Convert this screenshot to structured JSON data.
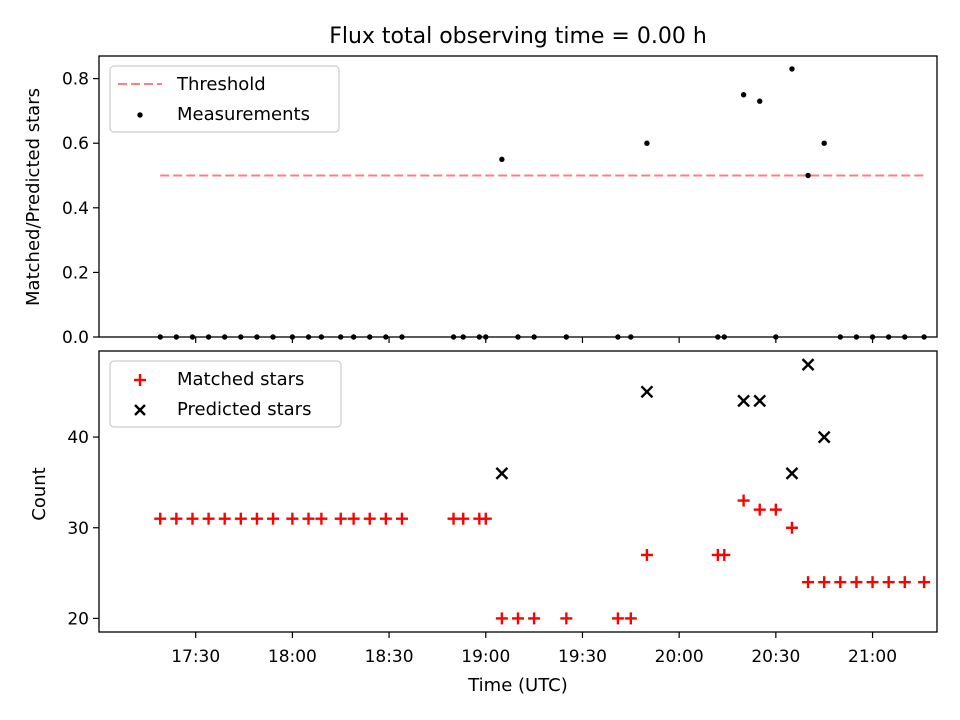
{
  "title": "Flux total observing time = 0.00 h",
  "chart_data": [
    {
      "type": "scatter",
      "ylabel": "Matched/Predicted stars",
      "ylim": [
        0,
        0.87
      ],
      "yticks": [
        0.0,
        0.2,
        0.4,
        0.6,
        0.8
      ],
      "ytick_labels": [
        "0.0",
        "0.2",
        "0.4",
        "0.6",
        "0.8"
      ],
      "legend_position": "top-left",
      "grid": false,
      "threshold": {
        "name": "Threshold",
        "y": 0.5,
        "x_start": "17:19",
        "x_end": "21:16",
        "color": "#ff7f7f",
        "style": "dashed"
      },
      "series": [
        {
          "name": "Measurements",
          "color": "#000000",
          "marker": "dot",
          "x": [
            "17:19",
            "17:24",
            "17:29",
            "17:34",
            "17:39",
            "17:44",
            "17:49",
            "17:54",
            "18:00",
            "18:05",
            "18:09",
            "18:15",
            "18:19",
            "18:24",
            "18:29",
            "18:34",
            "18:50",
            "18:53",
            "18:58",
            "19:00",
            "19:05",
            "19:10",
            "19:15",
            "19:25",
            "19:41",
            "19:45",
            "19:50",
            "20:12",
            "20:14",
            "20:20",
            "20:25",
            "20:30",
            "20:35",
            "20:40",
            "20:45",
            "20:50",
            "20:55",
            "21:00",
            "21:05",
            "21:10",
            "21:16"
          ],
          "y": [
            0,
            0,
            0,
            0,
            0,
            0,
            0,
            0,
            0,
            0,
            0,
            0,
            0,
            0,
            0,
            0,
            0,
            0,
            0,
            0,
            0.55,
            0,
            0,
            0,
            0,
            0,
            0.6,
            0,
            0,
            0.75,
            0.73,
            0,
            0.83,
            0.5,
            0.6,
            0,
            0,
            0,
            0,
            0,
            0
          ]
        }
      ]
    },
    {
      "type": "scatter",
      "ylabel": "Count",
      "xlabel": "Time (UTC)",
      "ylim": [
        18.5,
        49.5
      ],
      "yticks": [
        20,
        30,
        40
      ],
      "ytick_labels": [
        "20",
        "30",
        "40"
      ],
      "xlim": [
        "17:00",
        "21:20"
      ],
      "xticks": [
        "17:30",
        "18:00",
        "18:30",
        "19:00",
        "19:30",
        "20:00",
        "20:30",
        "21:00"
      ],
      "legend_position": "top-left",
      "grid": false,
      "series": [
        {
          "name": "Matched stars",
          "color": "#ff0000",
          "marker": "plus",
          "x": [
            "17:19",
            "17:24",
            "17:29",
            "17:34",
            "17:39",
            "17:44",
            "17:49",
            "17:54",
            "18:00",
            "18:05",
            "18:09",
            "18:15",
            "18:19",
            "18:24",
            "18:29",
            "18:34",
            "18:50",
            "18:53",
            "18:58",
            "19:00",
            "19:05",
            "19:10",
            "19:15",
            "19:25",
            "19:41",
            "19:45",
            "19:50",
            "20:12",
            "20:14",
            "20:20",
            "20:25",
            "20:30",
            "20:35",
            "20:40",
            "20:45",
            "20:50",
            "20:55",
            "21:00",
            "21:05",
            "21:10",
            "21:16"
          ],
          "y": [
            31,
            31,
            31,
            31,
            31,
            31,
            31,
            31,
            31,
            31,
            31,
            31,
            31,
            31,
            31,
            31,
            31,
            31,
            31,
            31,
            20,
            20,
            20,
            20,
            20,
            20,
            27,
            27,
            27,
            33,
            32,
            32,
            30,
            24,
            24,
            24,
            24,
            24,
            24,
            24,
            24
          ]
        },
        {
          "name": "Predicted stars",
          "color": "#000000",
          "marker": "x",
          "x": [
            "19:05",
            "19:50",
            "20:20",
            "20:25",
            "20:35",
            "20:40",
            "20:45"
          ],
          "y": [
            36,
            45,
            44,
            44,
            36,
            48,
            40
          ]
        }
      ]
    }
  ]
}
